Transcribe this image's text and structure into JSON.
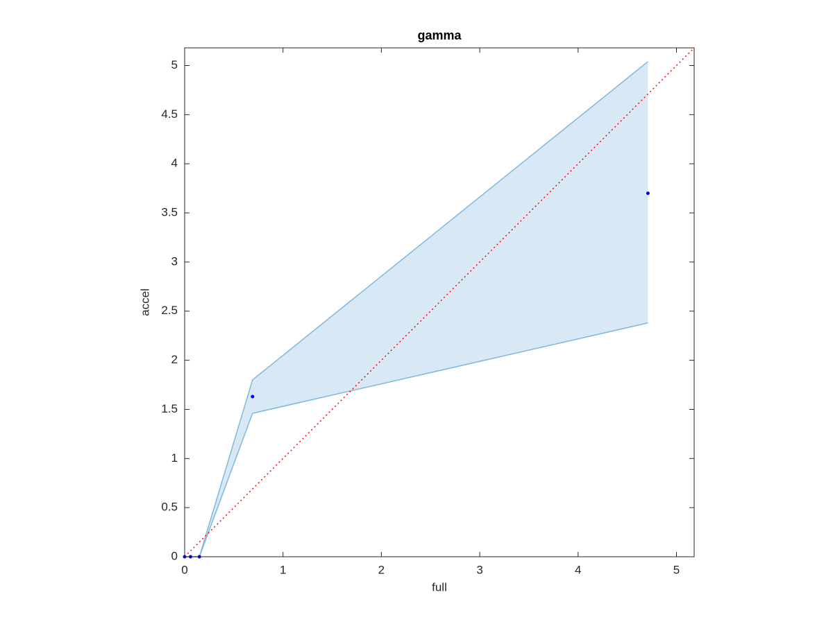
{
  "chart_data": {
    "type": "scatter",
    "title": "gamma",
    "xlabel": "full",
    "ylabel": "accel",
    "x": [
      0,
      0.06,
      0.15,
      0.69,
      4.71
    ],
    "values": [
      0,
      0,
      0,
      1.63,
      3.7
    ],
    "color": "#0000ff",
    "band": {
      "upper": [
        0,
        0,
        0,
        1.8,
        5.04
      ],
      "lower": [
        0,
        0,
        0,
        1.46,
        2.38
      ],
      "color": "#7fb8dd",
      "fill": "#d9e8f5"
    },
    "reference_line": {
      "color": "#ff0000"
    },
    "xlim": [
      0,
      5.18
    ],
    "ylim": [
      0,
      5.18
    ],
    "xticks": [
      0,
      1,
      2,
      3,
      4,
      5
    ],
    "yticks": [
      0,
      0.5,
      1,
      1.5,
      2,
      2.5,
      3,
      3.5,
      4,
      4.5,
      5
    ]
  }
}
